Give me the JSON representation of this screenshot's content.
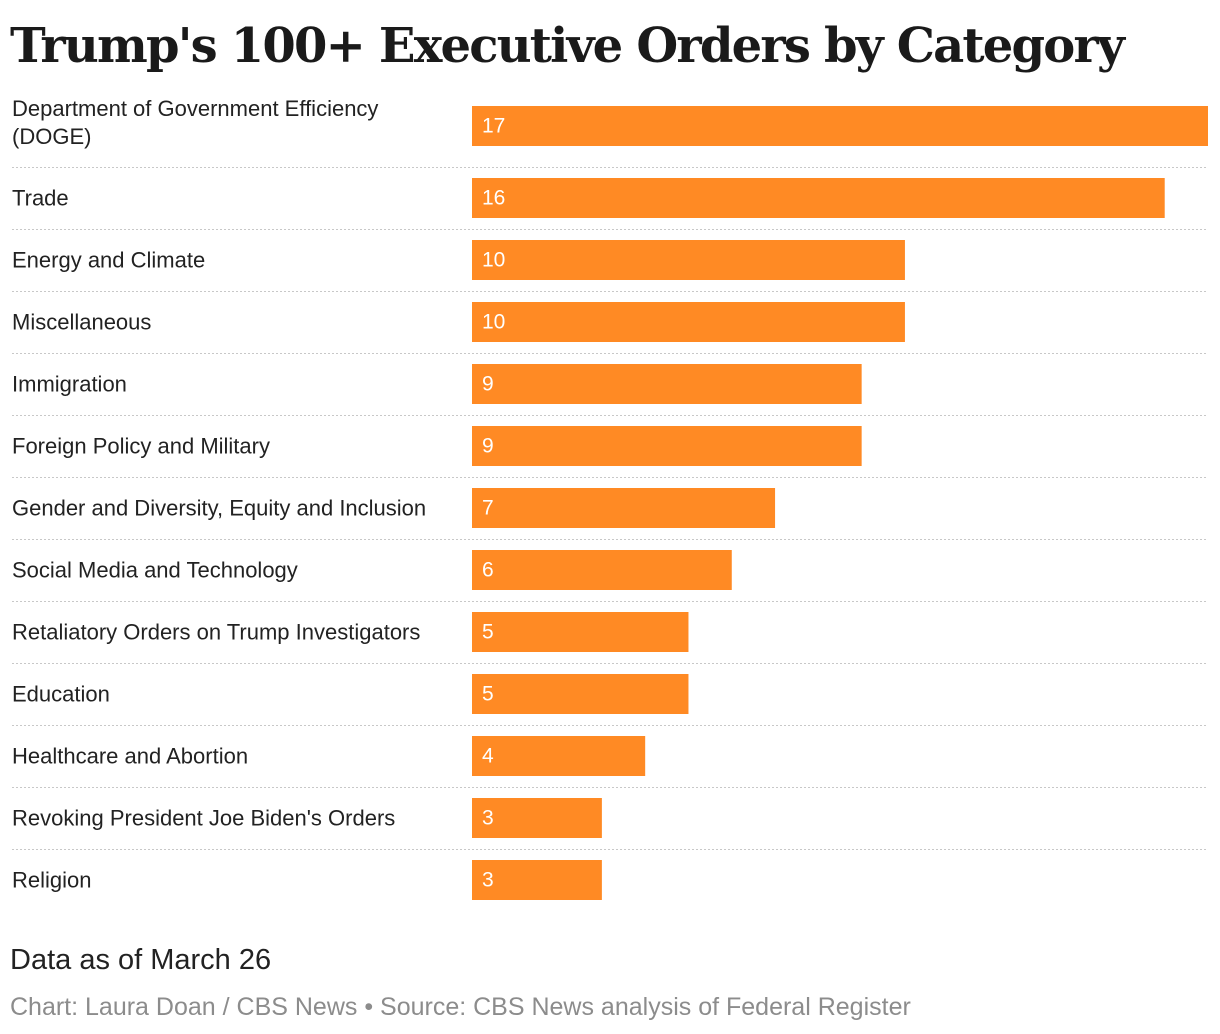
{
  "chart_data": {
    "type": "bar",
    "orientation": "horizontal",
    "title": "Trump's 100+ Executive Orders by Category",
    "categories": [
      [
        "Department of Government Efficiency",
        "(DOGE)"
      ],
      [
        "Trade"
      ],
      [
        "Energy and Climate"
      ],
      [
        "Miscellaneous"
      ],
      [
        "Immigration"
      ],
      [
        "Foreign Policy and Military"
      ],
      [
        "Gender and Diversity, Equity and Inclusion"
      ],
      [
        "Social Media and Technology"
      ],
      [
        "Retaliatory Orders on Trump Investigators"
      ],
      [
        "Education"
      ],
      [
        "Healthcare and Abortion"
      ],
      [
        "Revoking President Joe Biden's Orders"
      ],
      [
        "Religion"
      ]
    ],
    "values": [
      17,
      16,
      10,
      10,
      9,
      9,
      7,
      6,
      5,
      5,
      4,
      3,
      3
    ],
    "xlim": [
      0,
      17
    ],
    "bar_color": "#ff8a24",
    "data_labels": "inside-left",
    "xlabel": "",
    "ylabel": ""
  },
  "footer": {
    "note": "Data as of March 26",
    "credit": "Chart: Laura Doan / CBS News • Source: CBS News analysis of Federal Register"
  }
}
